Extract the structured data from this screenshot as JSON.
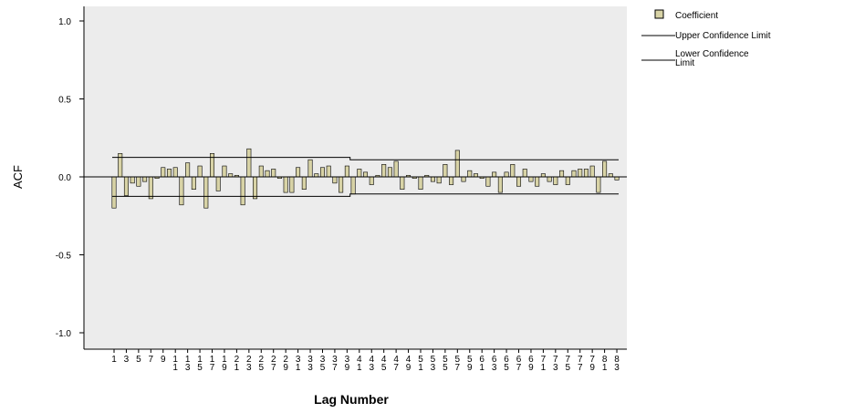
{
  "chart_data": {
    "type": "bar",
    "ylabel": "ACF",
    "xlabel": "Lag Number",
    "ylim": [
      -1.1,
      1.1
    ],
    "yticks": [
      1.0,
      0.5,
      0.0,
      -0.5,
      -1.0
    ],
    "ytick_labels": [
      "1.0",
      "0.5",
      "0.0",
      "-0.5",
      "-1.0"
    ],
    "legend_position": "top-right",
    "legend": {
      "coefficient": "Coefficient",
      "upper": "Upper Confidence Limit",
      "lower": "Lower Confidence Limit"
    },
    "colors": {
      "plot_background": "#ececec",
      "bar_fill": "#d8d3a6",
      "bar_stroke": "#000000",
      "line": "#000000"
    },
    "series": [
      {
        "name": "Coefficient",
        "x": [
          1,
          2,
          3,
          4,
          5,
          6,
          7,
          8,
          9,
          10,
          11,
          12,
          13,
          14,
          15,
          16,
          17,
          18,
          19,
          20,
          21,
          22,
          23,
          24,
          25,
          26,
          27,
          28,
          29,
          30,
          31,
          32,
          33,
          34,
          35,
          36,
          37,
          38,
          39,
          40,
          41,
          42,
          43,
          44,
          45,
          46,
          47,
          48,
          49,
          50,
          51,
          52,
          53,
          54,
          55,
          56,
          57,
          58,
          59,
          60,
          61,
          62,
          63,
          64,
          65,
          66,
          67,
          68,
          69,
          70,
          71,
          72,
          73,
          74,
          75,
          76,
          77,
          78,
          79,
          80,
          81,
          82,
          83
        ],
        "values": [
          -0.2,
          0.15,
          -0.12,
          -0.04,
          -0.06,
          -0.03,
          -0.14,
          -0.01,
          0.06,
          0.05,
          0.06,
          -0.18,
          0.09,
          -0.08,
          0.07,
          -0.2,
          0.15,
          -0.09,
          0.07,
          0.02,
          0.01,
          -0.18,
          0.18,
          -0.14,
          0.07,
          0.04,
          0.05,
          -0.01,
          -0.1,
          -0.1,
          0.06,
          -0.08,
          0.11,
          0.02,
          0.06,
          0.07,
          -0.04,
          -0.1,
          0.07,
          -0.11,
          0.05,
          0.03,
          -0.05,
          0.01,
          0.08,
          0.06,
          0.1,
          -0.08,
          0.01,
          -0.01,
          -0.08,
          0.01,
          -0.03,
          -0.04,
          0.08,
          -0.05,
          0.17,
          -0.03,
          0.04,
          0.02,
          -0.01,
          -0.06,
          0.03,
          -0.1,
          0.03,
          0.08,
          -0.06,
          0.05,
          -0.03,
          -0.06,
          0.02,
          -0.03,
          -0.05,
          0.04,
          -0.05,
          0.04,
          0.05,
          0.05,
          0.07,
          -0.1,
          0.1,
          0.02,
          -0.02
        ]
      },
      {
        "name": "Upper Confidence Limit",
        "x": [
          1,
          22,
          40,
          83
        ],
        "values": [
          0.125,
          0.125,
          0.11,
          0.1
        ]
      },
      {
        "name": "Lower Confidence Limit",
        "x": [
          1,
          22,
          40,
          83
        ],
        "values": [
          -0.125,
          -0.125,
          -0.11,
          -0.1
        ]
      }
    ],
    "xtick_labels": [
      "1",
      "3",
      "5",
      "7",
      "9",
      "11",
      "13",
      "15",
      "17",
      "19",
      "21",
      "23",
      "25",
      "27",
      "29",
      "31",
      "33",
      "35",
      "37",
      "39",
      "41",
      "43",
      "45",
      "47",
      "49",
      "51",
      "53",
      "55",
      "57",
      "59",
      "61",
      "63",
      "65",
      "67",
      "69",
      "71",
      "73",
      "75",
      "77",
      "79",
      "81",
      "83"
    ]
  }
}
